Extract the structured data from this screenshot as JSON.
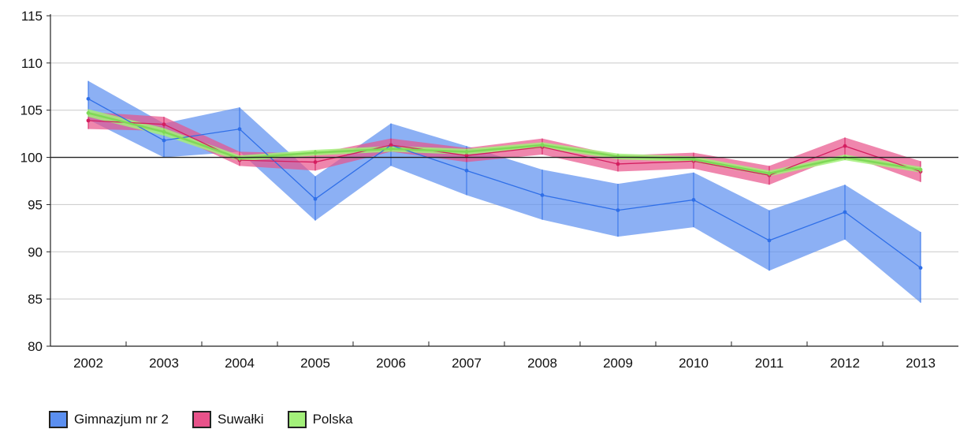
{
  "chart_data": {
    "type": "line",
    "title": "",
    "xlabel": "",
    "ylabel": "",
    "categories": [
      "2002",
      "2003",
      "2004",
      "2005",
      "2006",
      "2007",
      "2008",
      "2009",
      "2010",
      "2011",
      "2012",
      "2013"
    ],
    "ylim": [
      80,
      115
    ],
    "yticks": [
      80,
      85,
      90,
      95,
      100,
      105,
      110,
      115
    ],
    "reference_line": 100,
    "grid": true,
    "legend_position": "bottom-left",
    "series": [
      {
        "name": "Gimnazjum nr 2",
        "color": "#5b8ff0",
        "line_color": "#2f6fe8",
        "values": [
          106.2,
          101.8,
          103.0,
          95.6,
          101.3,
          98.6,
          96.0,
          94.4,
          95.5,
          91.2,
          94.2,
          88.3
        ],
        "lower": [
          104.0,
          100.0,
          100.6,
          93.3,
          99.1,
          96.0,
          93.4,
          91.6,
          92.6,
          88.0,
          91.3,
          84.6
        ],
        "upper": [
          108.1,
          103.6,
          105.3,
          98.0,
          103.6,
          101.2,
          98.7,
          97.2,
          98.4,
          94.4,
          97.1,
          92.1
        ]
      },
      {
        "name": "Suwałki",
        "color": "#e8528a",
        "line_color": "#d41e60",
        "values": [
          103.9,
          103.5,
          99.7,
          99.5,
          101.3,
          100.2,
          101.1,
          99.3,
          99.6,
          98.1,
          101.2,
          98.5
        ],
        "lower": [
          103.0,
          102.8,
          99.1,
          98.6,
          100.6,
          99.5,
          100.3,
          98.5,
          98.8,
          97.1,
          100.3,
          97.4
        ],
        "upper": [
          104.8,
          104.3,
          100.6,
          100.4,
          102.0,
          101.0,
          102.0,
          100.2,
          100.5,
          99.1,
          102.1,
          99.6
        ]
      },
      {
        "name": "Polska",
        "color": "#a3f07a",
        "line_color": "#7ed957",
        "values": [
          104.7,
          102.7,
          99.9,
          100.5,
          100.9,
          100.6,
          101.3,
          100.1,
          99.8,
          98.3,
          100.0,
          98.7
        ],
        "lower": [
          104.3,
          102.3,
          99.6,
          100.2,
          100.6,
          100.3,
          101.0,
          99.8,
          99.5,
          98.0,
          99.7,
          98.4
        ],
        "upper": [
          105.1,
          103.1,
          100.2,
          100.8,
          101.2,
          100.9,
          101.6,
          100.4,
          100.1,
          98.6,
          100.3,
          99.0
        ]
      }
    ]
  }
}
